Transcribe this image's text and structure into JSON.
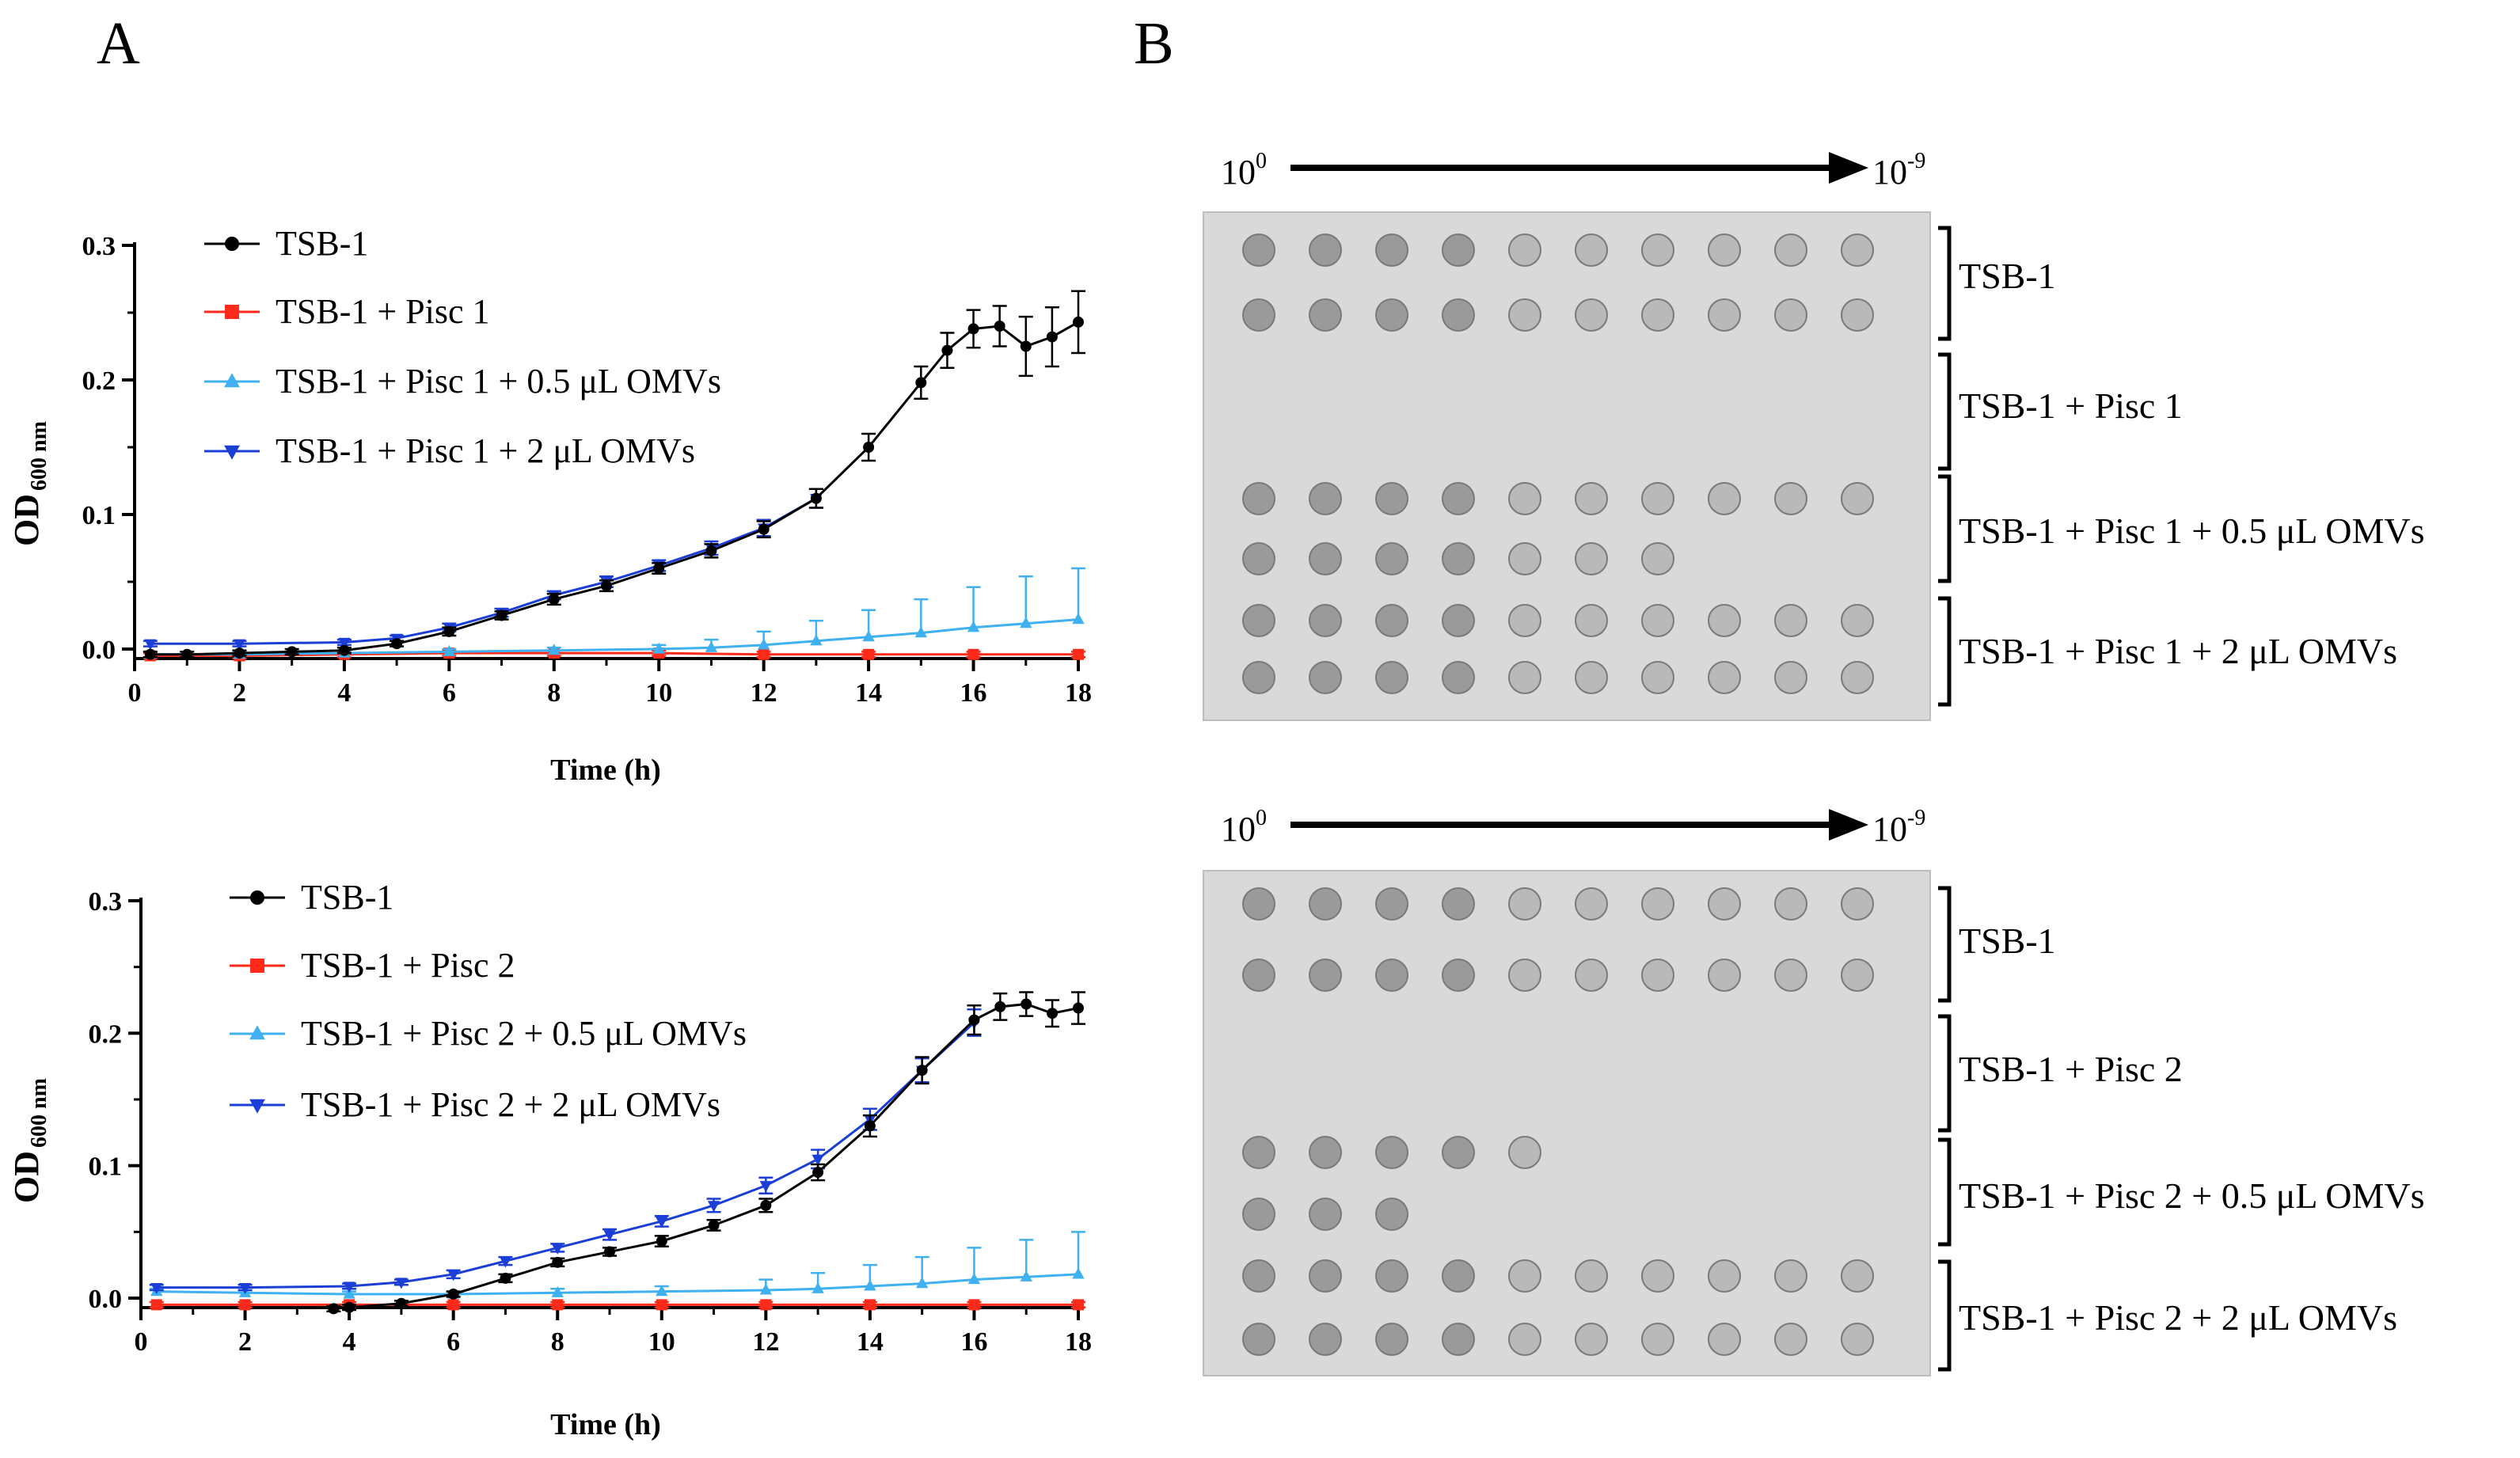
{
  "panels": {
    "a_label": "A",
    "b_label": "B"
  },
  "chart_data": [
    {
      "type": "line",
      "panel": "A-top",
      "title": "",
      "xlabel": "Time (h)",
      "ylabel_main": "OD",
      "ylabel_sub": "600 nm",
      "xlim": [
        0,
        18
      ],
      "ylim": [
        0,
        0.3
      ],
      "xticks": [
        "0",
        "2",
        "4",
        "6",
        "8",
        "10",
        "12",
        "14",
        "16",
        "18"
      ],
      "yticks": [
        "0.0",
        "0.1",
        "0.2",
        "0.3"
      ],
      "legend_position": "top-left",
      "series": [
        {
          "name": "TSB-1",
          "color": "#000000",
          "marker": "circle",
          "x": [
            0.3,
            1,
            2,
            3,
            4,
            5,
            6,
            7,
            8,
            9,
            10,
            11,
            12,
            13,
            14,
            15,
            15.5,
            16,
            16.5,
            17,
            17.5,
            18
          ],
          "y": [
            -0.004,
            -0.004,
            -0.003,
            -0.002,
            -0.001,
            0.004,
            0.013,
            0.025,
            0.037,
            0.047,
            0.06,
            0.073,
            0.089,
            0.112,
            0.15,
            0.198,
            0.222,
            0.238,
            0.24,
            0.225,
            0.232,
            0.243
          ],
          "err": [
            0.002,
            0.002,
            0.002,
            0.002,
            0.002,
            0.002,
            0.003,
            0.003,
            0.004,
            0.004,
            0.004,
            0.005,
            0.006,
            0.007,
            0.01,
            0.012,
            0.013,
            0.014,
            0.015,
            0.022,
            0.022,
            0.023
          ]
        },
        {
          "name": "TSB-1 + Pisc 1",
          "color": "#ff2a1a",
          "marker": "square",
          "x": [
            0.3,
            2,
            4,
            6,
            8,
            10,
            12,
            14,
            16,
            18
          ],
          "y": [
            -0.005,
            -0.005,
            -0.004,
            -0.003,
            -0.003,
            -0.003,
            -0.004,
            -0.004,
            -0.004,
            -0.004
          ],
          "err": [
            0.002,
            0.002,
            0.002,
            0.002,
            0.002,
            0.002,
            0.002,
            0.002,
            0.002,
            0.002
          ]
        },
        {
          "name": "TSB-1 + Pisc 1 + 0.5 μL OMVs",
          "color": "#3fb0f0",
          "marker": "triangle-up",
          "x": [
            0.3,
            2,
            4,
            6,
            8,
            10,
            11,
            12,
            13,
            14,
            15,
            16,
            17,
            18
          ],
          "y": [
            -0.004,
            -0.004,
            -0.003,
            -0.002,
            -0.001,
            0.0,
            0.001,
            0.003,
            0.006,
            0.009,
            0.012,
            0.016,
            0.019,
            0.022
          ],
          "err": [
            0.002,
            0.002,
            0.002,
            0.002,
            0.002,
            0.003,
            0.006,
            0.01,
            0.015,
            0.02,
            0.025,
            0.03,
            0.035,
            0.038
          ]
        },
        {
          "name": "TSB-1 + Pisc 1 + 2 μL OMVs",
          "color": "#1b3fd6",
          "marker": "triangle-down",
          "x": [
            0.3,
            2,
            4,
            5,
            6,
            7,
            8,
            9,
            10,
            11,
            12,
            13
          ],
          "y": [
            0.004,
            0.004,
            0.005,
            0.008,
            0.016,
            0.027,
            0.04,
            0.05,
            0.062,
            0.075,
            0.09,
            0.112
          ],
          "err": [
            0.002,
            0.002,
            0.002,
            0.002,
            0.003,
            0.003,
            0.003,
            0.004,
            0.004,
            0.005,
            0.006,
            0.007
          ]
        }
      ],
      "legend_entries": [
        "TSB-1",
        "TSB-1 + Pisc 1",
        "TSB-1 + Pisc 1 + 0.5 μL OMVs",
        "TSB-1 + Pisc 1 + 2 μL OMVs"
      ]
    },
    {
      "type": "line",
      "panel": "A-bottom",
      "title": "",
      "xlabel": "Time (h)",
      "ylabel_main": "OD",
      "ylabel_sub": "600 nm",
      "xlim": [
        0,
        18
      ],
      "ylim": [
        0,
        0.3
      ],
      "xticks": [
        "0",
        "2",
        "4",
        "6",
        "8",
        "10",
        "12",
        "14",
        "16",
        "18"
      ],
      "yticks": [
        "0.0",
        "0.1",
        "0.2",
        "0.3"
      ],
      "legend_position": "top-left",
      "series": [
        {
          "name": "TSB-1",
          "color": "#000000",
          "marker": "circle",
          "x": [
            3.7,
            4,
            5,
            6,
            7,
            8,
            9,
            10,
            11,
            12,
            13,
            14,
            15,
            16,
            16.5,
            17,
            17.5,
            18
          ],
          "y": [
            -0.008,
            -0.007,
            -0.004,
            0.003,
            0.015,
            0.027,
            0.035,
            0.043,
            0.055,
            0.07,
            0.095,
            0.13,
            0.172,
            0.21,
            0.22,
            0.222,
            0.215,
            0.219
          ],
          "err": [
            0.002,
            0.002,
            0.002,
            0.002,
            0.003,
            0.003,
            0.003,
            0.004,
            0.004,
            0.005,
            0.006,
            0.008,
            0.01,
            0.011,
            0.01,
            0.009,
            0.01,
            0.012
          ]
        },
        {
          "name": "TSB-1 + Pisc 2",
          "color": "#ff2a1a",
          "marker": "square",
          "x": [
            0.3,
            2,
            4,
            6,
            8,
            10,
            12,
            14,
            16,
            18
          ],
          "y": [
            -0.005,
            -0.005,
            -0.005,
            -0.005,
            -0.005,
            -0.005,
            -0.005,
            -0.005,
            -0.005,
            -0.005
          ],
          "err": [
            0.002,
            0.002,
            0.002,
            0.002,
            0.002,
            0.002,
            0.002,
            0.002,
            0.002,
            0.002
          ]
        },
        {
          "name": "TSB-1 + Pisc 2 + 0.5 μL OMVs",
          "color": "#3fb0f0",
          "marker": "triangle-up",
          "x": [
            0.3,
            2,
            4,
            6,
            8,
            10,
            12,
            13,
            14,
            15,
            16,
            17,
            18
          ],
          "y": [
            0.005,
            0.004,
            0.003,
            0.003,
            0.004,
            0.005,
            0.006,
            0.007,
            0.009,
            0.011,
            0.014,
            0.016,
            0.018
          ],
          "err": [
            0.002,
            0.002,
            0.002,
            0.002,
            0.003,
            0.004,
            0.008,
            0.012,
            0.016,
            0.02,
            0.024,
            0.028,
            0.032
          ]
        },
        {
          "name": "TSB-1 + Pisc 2 + 2 μL OMVs",
          "color": "#1b3fd6",
          "marker": "triangle-down",
          "x": [
            0.3,
            2,
            4,
            5,
            6,
            7,
            8,
            9,
            10,
            11,
            12,
            13,
            14,
            15,
            16
          ],
          "y": [
            0.008,
            0.008,
            0.009,
            0.012,
            0.018,
            0.028,
            0.038,
            0.048,
            0.058,
            0.07,
            0.085,
            0.105,
            0.135,
            0.172,
            0.208
          ],
          "err": [
            0.002,
            0.002,
            0.002,
            0.002,
            0.003,
            0.003,
            0.003,
            0.004,
            0.004,
            0.005,
            0.006,
            0.007,
            0.008,
            0.009,
            0.01
          ]
        }
      ],
      "legend_entries": [
        "TSB-1",
        "TSB-1 + Pisc 2",
        "TSB-1 + Pisc 2 + 0.5 μL OMVs",
        "TSB-1 + Pisc 2 + 2 μL OMVs"
      ]
    }
  ],
  "plates": [
    {
      "dilution_start": "10",
      "dilution_start_exp": "0",
      "dilution_end": "10",
      "dilution_end_exp": "-9",
      "groups": [
        "TSB-1",
        "TSB-1 + Pisc 1",
        "TSB-1 + Pisc 1 + 0.5 μL OMVs",
        "TSB-1 + Pisc 1 + 2 μL OMVs"
      ],
      "spot_rows": [
        10,
        10,
        0,
        0,
        10,
        7,
        10,
        10
      ]
    },
    {
      "dilution_start": "10",
      "dilution_start_exp": "0",
      "dilution_end": "10",
      "dilution_end_exp": "-9",
      "groups": [
        "TSB-1",
        "TSB-1 + Pisc 2",
        "TSB-1 + Pisc 2 + 0.5 μL OMVs",
        "TSB-1 + Pisc 2 + 2 μL OMVs"
      ],
      "spot_rows": [
        10,
        10,
        0,
        0,
        5,
        3,
        10,
        10
      ]
    }
  ]
}
